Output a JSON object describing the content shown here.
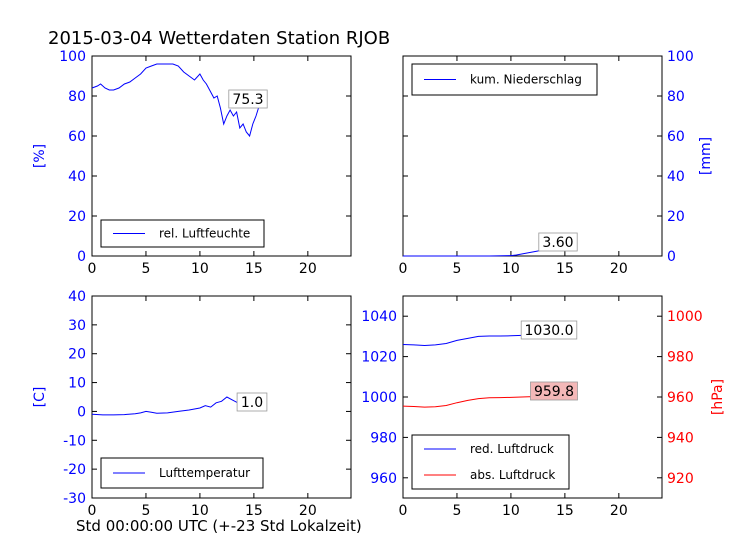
{
  "figure_title": "2015-03-04 Wetterdaten Station RJOB",
  "footer_label": "Std 00:00:00 UTC (+-23 Std Lokalzeit)",
  "colors": {
    "blue": "#0000ff",
    "red": "#ff0000",
    "axis": "#000000",
    "label_box_red_fill": "#f4b8b8"
  },
  "chart_data": [
    {
      "type": "line",
      "id": "humidity",
      "xlim": [
        0,
        24
      ],
      "ylim": [
        0,
        100
      ],
      "x_ticks": [
        0,
        5,
        10,
        15,
        20
      ],
      "y_ticks": [
        0,
        20,
        40,
        60,
        80,
        100
      ],
      "ylabel": "[%]",
      "legend": "lower-left",
      "series": [
        {
          "name": "rel. Luftfeuchte",
          "color": "#0000ff",
          "x": [
            0,
            0.5,
            0.8,
            1.2,
            1.6,
            2,
            2.5,
            3,
            3.5,
            4,
            4.5,
            5,
            5.5,
            6,
            6.5,
            7,
            7.5,
            8,
            8.5,
            9,
            9.5,
            10,
            10.3,
            10.6,
            11,
            11.3,
            11.6,
            11.9,
            12.2,
            12.5,
            12.8,
            13.1,
            13.4,
            13.7,
            14,
            14.3,
            14.6,
            14.9,
            15.2,
            15.5
          ],
          "y": [
            84,
            85,
            86,
            84,
            83,
            83,
            84,
            86,
            87,
            89,
            91,
            94,
            95,
            96,
            96,
            96,
            96,
            95,
            92,
            90,
            88,
            91,
            88,
            86,
            82,
            79,
            80,
            74,
            66,
            70,
            73,
            70,
            72,
            64,
            66,
            62,
            60,
            66,
            70,
            75.3
          ]
        }
      ],
      "value_label": "75.3"
    },
    {
      "type": "line",
      "id": "precipitation",
      "xlim": [
        0,
        24
      ],
      "ylim": [
        0,
        100
      ],
      "x_ticks": [
        0,
        5,
        10,
        15,
        20
      ],
      "y_ticks": [
        0,
        20,
        40,
        60,
        80,
        100
      ],
      "ylabel": "[mm]",
      "y_axis_side": "right",
      "legend": "top-left",
      "series": [
        {
          "name": "kum. Niederschlag",
          "color": "#0000ff",
          "x": [
            0,
            2,
            4,
            6,
            8,
            10,
            10.5,
            11,
            11.5,
            12,
            12.5,
            13,
            13.5,
            14,
            14.5,
            15,
            15.5,
            16
          ],
          "y": [
            0,
            0,
            0,
            0,
            0,
            0.2,
            0.5,
            1.0,
            1.5,
            2.0,
            2.5,
            3.0,
            3.3,
            3.5,
            3.6,
            3.6,
            3.6,
            3.6
          ]
        }
      ],
      "value_label": "3.60"
    },
    {
      "type": "line",
      "id": "temperature",
      "xlim": [
        0,
        24
      ],
      "ylim": [
        -30,
        40
      ],
      "x_ticks": [
        0,
        5,
        10,
        15,
        20
      ],
      "y_ticks": [
        -30,
        -20,
        -10,
        0,
        10,
        20,
        30,
        40
      ],
      "ylabel": "[C]",
      "legend": "lower-left",
      "series": [
        {
          "name": "Lufttemperatur",
          "color": "#0000ff",
          "x": [
            0,
            1,
            2,
            3,
            4,
            4.5,
            5,
            5.5,
            6,
            7,
            8,
            9,
            10,
            10.5,
            11,
            11.5,
            12,
            12.5,
            13,
            13.5,
            14,
            14.5,
            15,
            15.5
          ],
          "y": [
            -1,
            -1.2,
            -1.2,
            -1.1,
            -0.8,
            -0.5,
            0,
            -0.3,
            -0.6,
            -0.5,
            0,
            0.5,
            1.2,
            2,
            1.5,
            3,
            3.5,
            5,
            4,
            3,
            5,
            3,
            1.5,
            1.0
          ]
        }
      ],
      "value_label": "1.0"
    },
    {
      "type": "line",
      "id": "pressure",
      "xlim": [
        0,
        24
      ],
      "ylim_left": [
        950,
        1050
      ],
      "ylim_right": [
        910,
        1010
      ],
      "x_ticks": [
        0,
        5,
        10,
        15,
        20
      ],
      "y_ticks_left": [
        960,
        980,
        1000,
        1020,
        1040
      ],
      "y_ticks_right": [
        920,
        940,
        960,
        980,
        1000
      ],
      "ylabel_right": "[hPa]",
      "legend": "lower-left",
      "series": [
        {
          "name": "red. Luftdruck",
          "color": "#0000ff",
          "axis": "left",
          "x": [
            0,
            1,
            2,
            3,
            4,
            5,
            6,
            7,
            8,
            9,
            10,
            11,
            12,
            13,
            14,
            15,
            16
          ],
          "y": [
            1026,
            1025.8,
            1025.5,
            1025.8,
            1026.5,
            1028,
            1029,
            1030,
            1030.2,
            1030.2,
            1030.3,
            1030.5,
            1030.8,
            1030.5,
            1030.0,
            1029.8,
            1030.0
          ]
        },
        {
          "name": "abs. Luftdruck",
          "color": "#ff0000",
          "axis": "right",
          "x": [
            0,
            1,
            2,
            3,
            4,
            5,
            6,
            7,
            8,
            9,
            10,
            11,
            12,
            13,
            14,
            15,
            16
          ],
          "y": [
            955.5,
            955.3,
            955.0,
            955.2,
            955.8,
            957.2,
            958.3,
            959.2,
            959.6,
            959.7,
            959.8,
            960.0,
            960.2,
            960.0,
            959.8,
            959.6,
            959.8
          ]
        }
      ],
      "value_labels": [
        "1030.0",
        "959.8"
      ]
    }
  ]
}
